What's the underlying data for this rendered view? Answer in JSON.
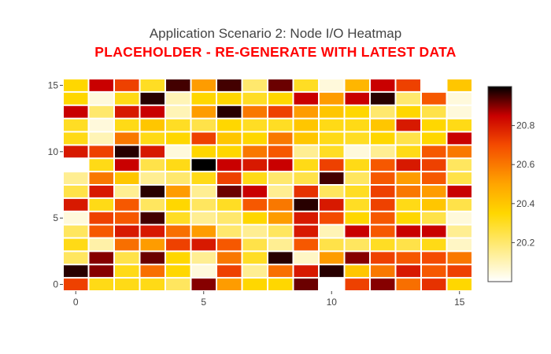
{
  "chart_data": {
    "type": "heatmap",
    "title": "Application Scenario 2: Node I/O Heatmap",
    "subtitle": "PLACEHOLDER - RE-GENERATE WITH LATEST DATA",
    "subtitle_color": "#ff0000",
    "xlabel": "",
    "ylabel": "",
    "x_range": [
      -0.5,
      15.5
    ],
    "y_range": [
      -0.5,
      15.5
    ],
    "x_ticks": [
      0,
      5,
      10,
      15
    ],
    "y_ticks": [
      0,
      5,
      10,
      15
    ],
    "colorscale": "YlOrRd-reversed (white → yellow → orange → red → black)",
    "zmin": 20.0,
    "zmax": 21.0,
    "colorbar_ticks": [
      20.2,
      20.4,
      20.6,
      20.8
    ],
    "grid": false,
    "z": [
      [
        20.72,
        20.32,
        20.32,
        20.32,
        20.22,
        20.9,
        20.52,
        20.35,
        20.35,
        20.92,
        20.0,
        20.72,
        20.9,
        20.62,
        20.75,
        20.35
      ],
      [
        20.97,
        20.9,
        20.32,
        20.62,
        20.35,
        20.05,
        20.72,
        20.15,
        20.62,
        20.8,
        20.97,
        20.4,
        20.6,
        20.8,
        20.67,
        20.72
      ],
      [
        20.22,
        20.9,
        20.25,
        20.92,
        20.35,
        20.15,
        20.6,
        20.3,
        20.97,
        20.08,
        20.52,
        20.9,
        20.72,
        20.67,
        20.7,
        20.6
      ],
      [
        20.32,
        20.12,
        20.62,
        20.52,
        20.72,
        20.8,
        20.67,
        20.25,
        20.15,
        20.67,
        20.25,
        20.22,
        20.3,
        20.25,
        20.32,
        20.08
      ],
      [
        20.22,
        20.67,
        20.8,
        20.8,
        20.62,
        20.52,
        20.2,
        20.15,
        20.22,
        20.8,
        20.1,
        20.85,
        20.67,
        20.85,
        20.85,
        20.15
      ],
      [
        20.05,
        20.72,
        20.67,
        20.95,
        20.3,
        20.15,
        20.2,
        20.35,
        20.52,
        20.8,
        20.7,
        20.35,
        20.67,
        20.35,
        20.25,
        20.05
      ],
      [
        20.8,
        20.32,
        20.67,
        20.22,
        20.35,
        20.22,
        20.3,
        20.67,
        20.6,
        20.97,
        20.8,
        20.3,
        20.72,
        20.32,
        20.4,
        20.25
      ],
      [
        20.25,
        20.8,
        20.15,
        20.97,
        20.52,
        20.15,
        20.92,
        20.85,
        20.15,
        20.75,
        20.22,
        20.3,
        20.72,
        20.6,
        20.52,
        20.85
      ],
      [
        20.15,
        20.6,
        20.4,
        20.15,
        20.2,
        20.32,
        20.72,
        20.32,
        20.2,
        20.25,
        20.95,
        20.22,
        20.67,
        20.52,
        20.67,
        20.25
      ],
      [
        20.0,
        20.32,
        20.85,
        20.25,
        20.32,
        21.0,
        20.85,
        20.8,
        20.85,
        20.32,
        20.72,
        20.32,
        20.67,
        20.8,
        20.72,
        20.22
      ],
      [
        20.8,
        20.72,
        20.97,
        20.8,
        20.05,
        20.35,
        20.35,
        20.6,
        20.67,
        20.15,
        20.3,
        20.05,
        20.15,
        20.32,
        20.67,
        20.6
      ],
      [
        20.32,
        20.1,
        20.6,
        20.32,
        20.35,
        20.72,
        20.4,
        20.35,
        20.6,
        20.4,
        20.32,
        20.3,
        20.35,
        20.25,
        20.35,
        20.85
      ],
      [
        20.3,
        20.05,
        20.32,
        20.4,
        20.3,
        20.25,
        20.35,
        20.3,
        20.3,
        20.4,
        20.32,
        20.32,
        20.4,
        20.8,
        20.35,
        20.32
      ],
      [
        20.85,
        20.2,
        20.8,
        20.85,
        20.1,
        20.52,
        20.97,
        20.6,
        20.72,
        20.52,
        20.4,
        20.35,
        20.2,
        20.35,
        20.25,
        20.05
      ],
      [
        20.35,
        20.05,
        20.32,
        20.97,
        20.1,
        20.35,
        20.35,
        20.3,
        20.35,
        20.85,
        20.52,
        20.85,
        20.97,
        20.2,
        20.67,
        20.05
      ],
      [
        20.35,
        20.85,
        20.72,
        20.3,
        20.95,
        20.52,
        20.95,
        20.2,
        20.92,
        20.3,
        20.05,
        20.45,
        20.85,
        20.72,
        20.0,
        20.4
      ]
    ]
  }
}
